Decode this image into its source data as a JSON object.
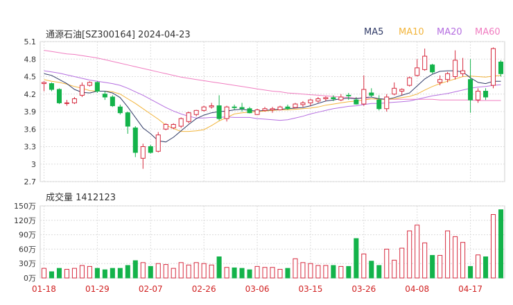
{
  "header": {
    "title": "通源石油[SZ300164] 2024-04-23",
    "ma5": "MA5",
    "ma10": "MA10",
    "ma20": "MA20",
    "ma60": "MA60"
  },
  "volume_header": {
    "label": "成交量 1412123"
  },
  "colors": {
    "up": "#d6283c",
    "down": "#13b34a",
    "ma5": "#2f3a66",
    "ma10": "#f2b43a",
    "ma20": "#b56ee0",
    "ma60": "#f07cc0",
    "grid": "#dcdcdc"
  },
  "chart_data": [
    {
      "type": "candlestick",
      "ylim": [
        2.7,
        5.1
      ],
      "yticks": [
        "5.1",
        "4.8",
        "4.5",
        "4.2",
        "3.9",
        "3.6",
        "3.3",
        "3",
        "2.7"
      ],
      "ytick_values": [
        5.1,
        4.8,
        4.5,
        4.2,
        3.9,
        3.6,
        3.3,
        3.0,
        2.7
      ],
      "xticks": [
        {
          "label": "01-18",
          "index": 0
        },
        {
          "label": "01-29",
          "index": 7
        },
        {
          "label": "02-07",
          "index": 14
        },
        {
          "label": "02-26",
          "index": 21
        },
        {
          "label": "03-06",
          "index": 28
        },
        {
          "label": "03-15",
          "index": 35
        },
        {
          "label": "03-26",
          "index": 42
        },
        {
          "label": "04-08",
          "index": 49
        },
        {
          "label": "04-17",
          "index": 56
        }
      ],
      "ohlc": [
        [
          4.38,
          4.42,
          4.25,
          4.4
        ],
        [
          4.38,
          4.4,
          4.25,
          4.28
        ],
        [
          4.28,
          4.3,
          4.03,
          4.05
        ],
        [
          4.04,
          4.1,
          4.0,
          4.05
        ],
        [
          4.05,
          4.15,
          4.03,
          4.12
        ],
        [
          4.18,
          4.4,
          4.15,
          4.35
        ],
        [
          4.35,
          4.42,
          4.33,
          4.4
        ],
        [
          4.4,
          4.42,
          4.22,
          4.25
        ],
        [
          4.2,
          4.25,
          4.1,
          4.15
        ],
        [
          4.15,
          4.18,
          3.98,
          4.0
        ],
        [
          3.98,
          4.02,
          3.85,
          3.88
        ],
        [
          3.88,
          3.9,
          3.52,
          3.65
        ],
        [
          3.62,
          3.65,
          3.12,
          3.2
        ],
        [
          3.1,
          3.35,
          2.92,
          3.3
        ],
        [
          3.3,
          3.33,
          3.18,
          3.2
        ],
        [
          3.22,
          3.55,
          3.2,
          3.5
        ],
        [
          3.6,
          3.7,
          3.58,
          3.68
        ],
        [
          3.62,
          3.7,
          3.6,
          3.68
        ],
        [
          3.65,
          3.8,
          3.62,
          3.78
        ],
        [
          3.73,
          3.9,
          3.7,
          3.88
        ],
        [
          3.85,
          3.93,
          3.82,
          3.92
        ],
        [
          3.92,
          4.0,
          3.9,
          3.98
        ],
        [
          3.98,
          4.05,
          3.95,
          4.0
        ],
        [
          4.0,
          4.18,
          3.75,
          3.78
        ],
        [
          3.78,
          4.0,
          3.73,
          3.98
        ],
        [
          3.98,
          4.02,
          3.93,
          3.97
        ],
        [
          3.97,
          4.05,
          3.9,
          3.95
        ],
        [
          3.95,
          3.98,
          3.87,
          3.88
        ],
        [
          3.85,
          3.95,
          3.84,
          3.93
        ],
        [
          3.92,
          3.98,
          3.9,
          3.95
        ],
        [
          3.93,
          3.98,
          3.88,
          3.95
        ],
        [
          3.93,
          4.0,
          3.92,
          3.98
        ],
        [
          3.98,
          4.02,
          3.93,
          3.95
        ],
        [
          3.97,
          4.05,
          3.96,
          4.03
        ],
        [
          4.02,
          4.08,
          3.98,
          4.05
        ],
        [
          4.05,
          4.12,
          4.0,
          4.1
        ],
        [
          4.08,
          4.15,
          4.05,
          4.12
        ],
        [
          4.12,
          4.16,
          4.08,
          4.14
        ],
        [
          4.14,
          4.18,
          4.08,
          4.12
        ],
        [
          4.1,
          4.2,
          4.08,
          4.15
        ],
        [
          4.18,
          4.22,
          4.1,
          4.17
        ],
        [
          4.1,
          4.15,
          4.02,
          4.03
        ],
        [
          4.03,
          4.52,
          4.0,
          4.28
        ],
        [
          4.22,
          4.3,
          4.15,
          4.18
        ],
        [
          4.1,
          4.18,
          3.92,
          3.95
        ],
        [
          3.95,
          4.2,
          3.9,
          4.15
        ],
        [
          4.2,
          4.4,
          4.18,
          4.3
        ],
        [
          4.25,
          4.3,
          4.18,
          4.28
        ],
        [
          4.35,
          4.5,
          4.33,
          4.48
        ],
        [
          4.52,
          4.8,
          4.5,
          4.65
        ],
        [
          4.62,
          4.98,
          4.6,
          4.85
        ],
        [
          4.7,
          4.72,
          4.55,
          4.58
        ],
        [
          4.4,
          4.52,
          4.35,
          4.45
        ],
        [
          4.45,
          4.58,
          4.4,
          4.55
        ],
        [
          4.5,
          4.95,
          4.45,
          4.78
        ],
        [
          4.55,
          4.82,
          4.5,
          4.6
        ],
        [
          4.45,
          4.8,
          3.88,
          4.1
        ],
        [
          4.1,
          4.3,
          4.05,
          4.25
        ],
        [
          4.25,
          4.3,
          4.1,
          4.15
        ],
        [
          4.35,
          5.0,
          4.3,
          4.98
        ],
        [
          4.75,
          4.78,
          4.5,
          4.55
        ]
      ],
      "ma5": [
        4.55,
        4.52,
        4.45,
        4.38,
        4.28,
        4.23,
        4.22,
        4.25,
        4.25,
        4.22,
        4.14,
        3.98,
        3.8,
        3.62,
        3.52,
        3.4,
        3.38,
        3.46,
        3.57,
        3.68,
        3.78,
        3.84,
        3.88,
        3.9,
        3.91,
        3.93,
        3.94,
        3.92,
        3.91,
        3.92,
        3.93,
        3.94,
        3.95,
        3.96,
        3.97,
        4.0,
        4.04,
        4.08,
        4.1,
        4.12,
        4.13,
        4.12,
        4.14,
        4.15,
        4.12,
        4.11,
        4.14,
        4.18,
        4.22,
        4.34,
        4.46,
        4.54,
        4.59,
        4.6,
        4.6,
        4.58,
        4.48,
        4.4,
        4.38,
        4.42,
        4.42
      ],
      "ma10": [
        4.45,
        4.42,
        4.4,
        4.37,
        4.33,
        4.3,
        4.26,
        4.25,
        4.25,
        4.24,
        4.2,
        4.12,
        4.04,
        3.95,
        3.86,
        3.77,
        3.67,
        3.61,
        3.56,
        3.56,
        3.57,
        3.59,
        3.66,
        3.74,
        3.8,
        3.86,
        3.88,
        3.89,
        3.9,
        3.91,
        3.92,
        3.93,
        3.93,
        3.94,
        3.95,
        3.96,
        3.98,
        4.01,
        4.03,
        4.05,
        4.07,
        4.08,
        4.1,
        4.12,
        4.11,
        4.11,
        4.12,
        4.14,
        4.16,
        4.2,
        4.27,
        4.33,
        4.38,
        4.42,
        4.46,
        4.5,
        4.51,
        4.5,
        4.49,
        4.51,
        4.52
      ],
      "ma20": [
        4.6,
        4.58,
        4.56,
        4.53,
        4.5,
        4.47,
        4.44,
        4.42,
        4.4,
        4.38,
        4.35,
        4.3,
        4.24,
        4.18,
        4.11,
        4.04,
        3.97,
        3.91,
        3.86,
        3.82,
        3.79,
        3.79,
        3.8,
        3.8,
        3.81,
        3.8,
        3.8,
        3.8,
        3.78,
        3.77,
        3.76,
        3.75,
        3.76,
        3.79,
        3.82,
        3.86,
        3.89,
        3.92,
        3.95,
        3.97,
        3.99,
        4.0,
        4.02,
        4.04,
        4.04,
        4.05,
        4.06,
        4.07,
        4.08,
        4.11,
        4.14,
        4.17,
        4.19,
        4.21,
        4.24,
        4.27,
        4.3,
        4.32,
        4.33,
        4.35,
        4.36
      ],
      "ma60": [
        4.95,
        4.93,
        4.91,
        4.89,
        4.88,
        4.86,
        4.84,
        4.82,
        4.79,
        4.76,
        4.73,
        4.7,
        4.67,
        4.64,
        4.61,
        4.58,
        4.55,
        4.52,
        4.49,
        4.47,
        4.45,
        4.43,
        4.41,
        4.39,
        4.37,
        4.35,
        4.33,
        4.31,
        4.29,
        4.27,
        4.25,
        4.24,
        4.22,
        4.21,
        4.2,
        4.19,
        4.18,
        4.17,
        4.16,
        4.15,
        4.14,
        4.13,
        4.13,
        4.12,
        4.12,
        4.11,
        4.11,
        4.11,
        4.11,
        4.11,
        4.11,
        4.11,
        4.1,
        4.1,
        4.1,
        4.1,
        4.1,
        4.09,
        4.09,
        4.09,
        4.09
      ]
    },
    {
      "type": "bar",
      "ylim": [
        0,
        150
      ],
      "yticks": [
        "150万",
        "120万",
        "90万",
        "60万",
        "30万",
        "0万"
      ],
      "ytick_values": [
        150,
        120,
        90,
        60,
        30,
        0
      ],
      "unit": "万",
      "values": [
        20,
        13,
        20,
        18,
        20,
        26,
        24,
        20,
        17,
        20,
        20,
        26,
        36,
        32,
        24,
        30,
        28,
        20,
        32,
        27,
        32,
        30,
        27,
        44,
        22,
        21,
        20,
        17,
        24,
        22,
        22,
        18,
        20,
        40,
        32,
        30,
        26,
        26,
        26,
        24,
        24,
        82,
        50,
        35,
        26,
        60,
        37,
        62,
        98,
        110,
        73,
        47,
        47,
        98,
        86,
        74,
        24,
        48,
        44,
        132,
        142
      ]
    }
  ]
}
